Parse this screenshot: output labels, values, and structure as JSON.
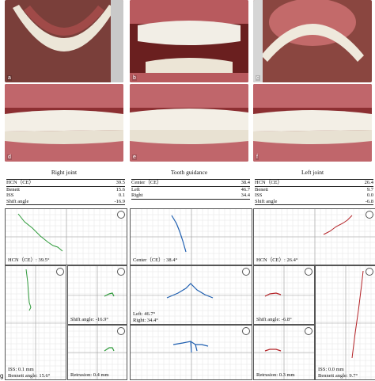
{
  "figure": {
    "photo_labels": [
      "a",
      "b",
      "c",
      "d",
      "e",
      "f"
    ],
    "panel_letter": "g"
  },
  "sections": [
    {
      "title": "Right joint",
      "rows": [
        {
          "label": "HCN（CE）",
          "value": "39.5"
        },
        {
          "label": "Benett",
          "value": "15.6"
        },
        {
          "label": "ISS",
          "value": "0.1"
        },
        {
          "label": "Shift angle",
          "value": "-16.9"
        }
      ],
      "top_caption": "HCN（CE）: 39.5°",
      "big_caption_1": "ISS: 0.1 mm",
      "big_caption_2": "Bennett angle: 15.6°",
      "small_top_caption": "Shift angle: -16.9°",
      "small_bottom_caption": "Retrusion: 0.4 mm",
      "trace_color": "#2e9a3a"
    },
    {
      "title": "Tooth guidance",
      "rows": [
        {
          "label": "Center（CE）",
          "value": "38.4"
        },
        {
          "label": "Left",
          "value": "46.7"
        },
        {
          "label": "Right",
          "value": "34.4"
        }
      ],
      "top_caption": "Center（CE）: 38.4°",
      "mid_caption_1": "Left: 46.7°",
      "mid_caption_2": "Right: 34.4°",
      "trace_color": "#1f5fb0"
    },
    {
      "title": "Left joint",
      "rows": [
        {
          "label": "HCN（CE）",
          "value": "26.4"
        },
        {
          "label": "Benett",
          "value": "9.7"
        },
        {
          "label": "ISS",
          "value": "0.0"
        },
        {
          "label": "Shift angle",
          "value": "-6.8"
        }
      ],
      "top_caption": "HCN（CE）: 26.4°",
      "big_caption_1": "ISS: 0.0 mm",
      "big_caption_2": "Bennett angle: 9.7°",
      "small_top_caption": "Shift angle: -6.8°",
      "small_bottom_caption": "Retrusion: 0.3 mm",
      "trace_color": "#b32025"
    }
  ]
}
